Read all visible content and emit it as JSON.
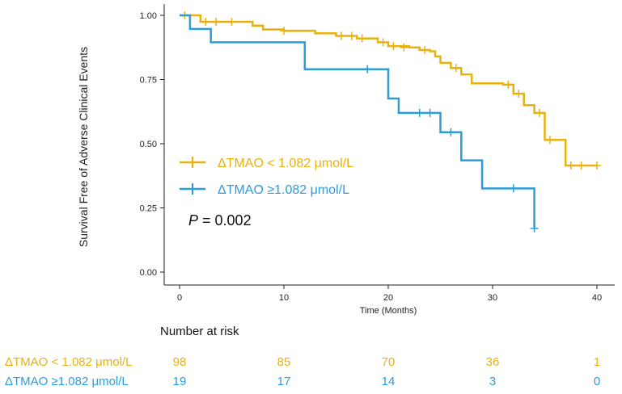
{
  "chart_data": {
    "type": "line",
    "subtype": "kaplan-meier",
    "title": "",
    "xlabel": "Time (Months)",
    "ylabel": "Survival Free of Adverse Clinical Events",
    "xlim": [
      0,
      40
    ],
    "ylim": [
      0,
      1
    ],
    "x_ticks": [
      "0",
      "10",
      "20",
      "30",
      "40"
    ],
    "y_ticks": [
      "0.00",
      "0.25",
      "0.50",
      "0.75",
      "1.00"
    ],
    "annotation": {
      "label": "P",
      "text": " = 0.002"
    },
    "legend_position": "center-left",
    "series": [
      {
        "name": "ΔTMAO < 1.082 μmol/L",
        "color": "#E8B20E",
        "steps": [
          [
            0,
            1.0
          ],
          [
            2,
            0.975
          ],
          [
            7,
            0.96
          ],
          [
            8,
            0.945
          ],
          [
            10,
            0.94
          ],
          [
            13,
            0.93
          ],
          [
            15,
            0.92
          ],
          [
            17,
            0.91
          ],
          [
            19,
            0.895
          ],
          [
            20,
            0.88
          ],
          [
            22,
            0.875
          ],
          [
            23,
            0.865
          ],
          [
            24,
            0.86
          ],
          [
            24.5,
            0.84
          ],
          [
            25,
            0.815
          ],
          [
            26,
            0.795
          ],
          [
            27,
            0.77
          ],
          [
            28,
            0.735
          ],
          [
            31,
            0.73
          ],
          [
            32,
            0.695
          ],
          [
            33,
            0.65
          ],
          [
            34,
            0.62
          ],
          [
            35,
            0.515
          ],
          [
            37,
            0.415
          ],
          [
            40,
            0.415
          ]
        ],
        "censored": [
          [
            0.5,
            1.0
          ],
          [
            2.5,
            0.975
          ],
          [
            3.5,
            0.975
          ],
          [
            5,
            0.975
          ],
          [
            10,
            0.94
          ],
          [
            15.5,
            0.92
          ],
          [
            16.5,
            0.92
          ],
          [
            17.5,
            0.91
          ],
          [
            19.5,
            0.895
          ],
          [
            20.5,
            0.88
          ],
          [
            21.5,
            0.875
          ],
          [
            23.5,
            0.865
          ],
          [
            26.5,
            0.795
          ],
          [
            31.5,
            0.73
          ],
          [
            32.5,
            0.695
          ],
          [
            34.5,
            0.62
          ],
          [
            35.5,
            0.515
          ],
          [
            37.5,
            0.415
          ],
          [
            38.5,
            0.415
          ],
          [
            40,
            0.415
          ]
        ]
      },
      {
        "name": "ΔTMAO ≥1.082 μmol/L",
        "color": "#2D9CDB",
        "steps": [
          [
            0,
            1.0
          ],
          [
            1,
            0.947
          ],
          [
            3,
            0.895
          ],
          [
            12,
            0.79
          ],
          [
            20,
            0.676
          ],
          [
            21,
            0.62
          ],
          [
            25,
            0.545
          ],
          [
            27,
            0.435
          ],
          [
            29,
            0.326
          ],
          [
            34,
            0.17
          ]
        ],
        "censored": [
          [
            18,
            0.79
          ],
          [
            23,
            0.62
          ],
          [
            24,
            0.62
          ],
          [
            26,
            0.545
          ],
          [
            32,
            0.326
          ],
          [
            34,
            0.17
          ]
        ]
      }
    ]
  },
  "risk_table": {
    "title": "Number at risk",
    "times": [
      0,
      10,
      20,
      30,
      40
    ],
    "rows": [
      {
        "label": "ΔTMAO < 1.082 μmol/L",
        "color": "#E8B20E",
        "values": [
          "98",
          "85",
          "70",
          "36",
          "1"
        ]
      },
      {
        "label": "ΔTMAO ≥1.082 μmol/L",
        "color": "#2D9CDB",
        "values": [
          "19",
          "17",
          "14",
          "3",
          "0"
        ]
      }
    ]
  }
}
